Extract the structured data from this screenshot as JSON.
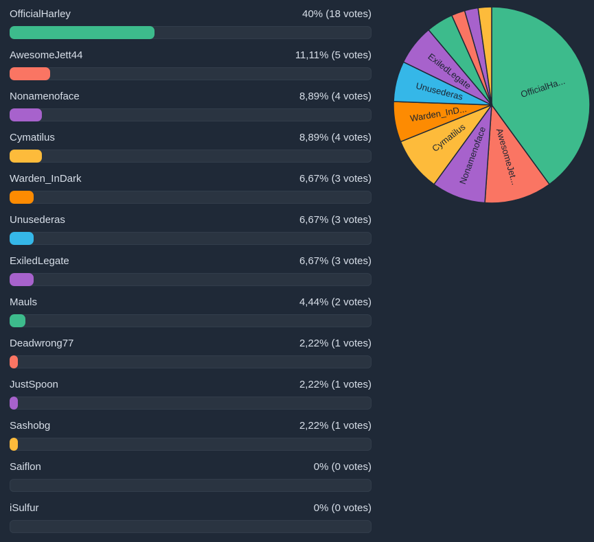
{
  "chart_data": {
    "type": "bar",
    "rows": [
      {
        "name": "OfficialHarley",
        "percent_label": "40% (18 votes)",
        "value": 40,
        "votes": 18,
        "color": "#3dbb8c",
        "pie_label": "OfficialHa..."
      },
      {
        "name": "AwesomeJett44",
        "percent_label": "11,11% (5 votes)",
        "value": 11.11,
        "votes": 5,
        "color": "#fa7563",
        "pie_label": "AwesomeJet..."
      },
      {
        "name": "Nonamenoface",
        "percent_label": "8,89% (4 votes)",
        "value": 8.89,
        "votes": 4,
        "color": "#a762cc",
        "pie_label": "Nonamenoface"
      },
      {
        "name": "Cymatilus",
        "percent_label": "8,89% (4 votes)",
        "value": 8.89,
        "votes": 4,
        "color": "#fdbb3b",
        "pie_label": "Cymatilus"
      },
      {
        "name": "Warden_InDark",
        "percent_label": "6,67% (3 votes)",
        "value": 6.67,
        "votes": 3,
        "color": "#fd8b02",
        "pie_label": "Warden_InD..."
      },
      {
        "name": "Unusederas",
        "percent_label": "6,67% (3 votes)",
        "value": 6.67,
        "votes": 3,
        "color": "#35b7e8",
        "pie_label": "Unusederas"
      },
      {
        "name": "ExiledLegate",
        "percent_label": "6,67% (3 votes)",
        "value": 6.67,
        "votes": 3,
        "color": "#a762cc",
        "pie_label": "ExiledLegate"
      },
      {
        "name": "Mauls",
        "percent_label": "4,44% (2 votes)",
        "value": 4.44,
        "votes": 2,
        "color": "#3dbb8c",
        "pie_label": ""
      },
      {
        "name": "Deadwrong77",
        "percent_label": "2,22% (1 votes)",
        "value": 2.22,
        "votes": 1,
        "color": "#fa7563",
        "pie_label": ""
      },
      {
        "name": "JustSpoon",
        "percent_label": "2,22% (1 votes)",
        "value": 2.22,
        "votes": 1,
        "color": "#a762cc",
        "pie_label": ""
      },
      {
        "name": "Sashobg",
        "percent_label": "2,22% (1 votes)",
        "value": 2.22,
        "votes": 1,
        "color": "#fdbb3b",
        "pie_label": ""
      },
      {
        "name": "Saiflon",
        "percent_label": "0% (0 votes)",
        "value": 0,
        "votes": 0,
        "color": "#3dbb8c",
        "pie_label": ""
      },
      {
        "name": "iSulfur",
        "percent_label": "0% (0 votes)",
        "value": 0,
        "votes": 0,
        "color": "#fa7563",
        "pie_label": ""
      }
    ],
    "pie": {
      "type": "pie",
      "start": "top",
      "direction": "clockwise",
      "slice_border_color": "#1f2937"
    }
  }
}
